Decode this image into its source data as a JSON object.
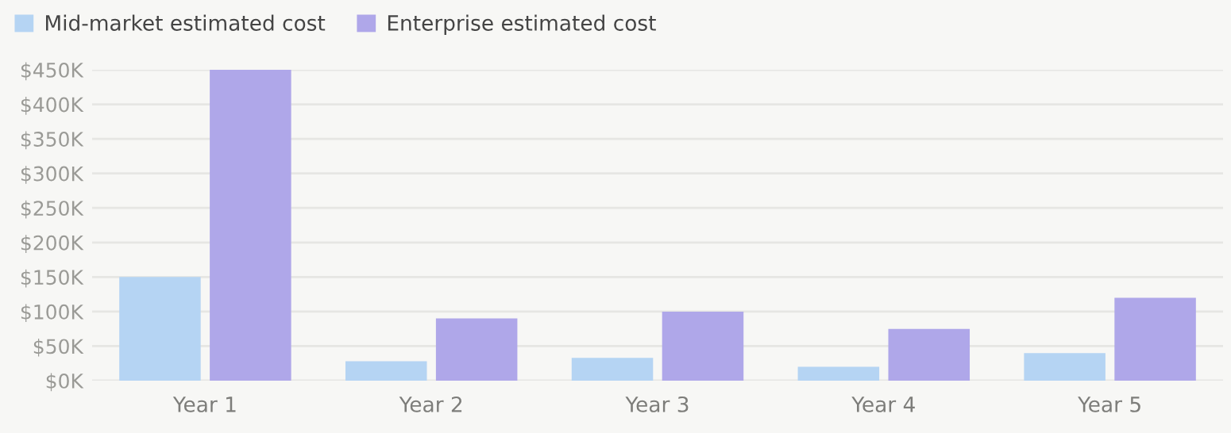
{
  "chart_data": {
    "type": "bar",
    "categories": [
      "Year 1",
      "Year 2",
      "Year 3",
      "Year 4",
      "Year 5"
    ],
    "series": [
      {
        "name": "Mid-market estimated cost",
        "color": "#b5d4f3",
        "values": [
          150,
          28,
          33,
          20,
          40
        ]
      },
      {
        "name": "Enterprise estimated cost",
        "color": "#afa7e9",
        "values": [
          450,
          90,
          100,
          75,
          120
        ]
      }
    ],
    "ylim": [
      0,
      450
    ],
    "yticks": [
      {
        "value": 0,
        "label": "$0K"
      },
      {
        "value": 50,
        "label": "$50K"
      },
      {
        "value": 100,
        "label": "$100K"
      },
      {
        "value": 150,
        "label": "$150K"
      },
      {
        "value": 200,
        "label": "$200K"
      },
      {
        "value": 250,
        "label": "$250K"
      },
      {
        "value": 300,
        "label": "$300K"
      },
      {
        "value": 350,
        "label": "$350K"
      },
      {
        "value": 400,
        "label": "$400K"
      },
      {
        "value": 450,
        "label": "$450K"
      }
    ],
    "grid": "y",
    "legend": "top left"
  }
}
